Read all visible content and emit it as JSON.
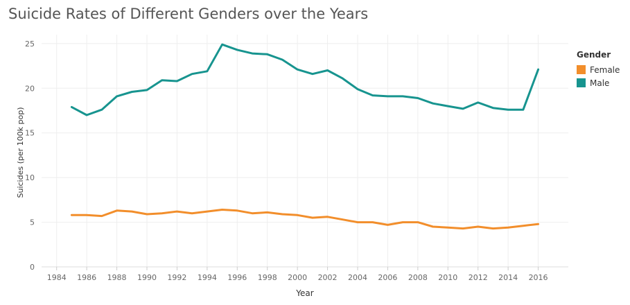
{
  "chart_data": {
    "type": "line",
    "title": "Suicide Rates of Different Genders over the Years",
    "xlabel": "Year",
    "ylabel": "Suicides (per 100k pop)",
    "xlim": [
      1983,
      2018
    ],
    "ylim": [
      0,
      26
    ],
    "x_ticks": [
      1984,
      1986,
      1988,
      1990,
      1992,
      1994,
      1996,
      1998,
      2000,
      2002,
      2004,
      2006,
      2008,
      2010,
      2012,
      2014,
      2016
    ],
    "y_ticks": [
      0,
      5,
      10,
      15,
      20,
      25
    ],
    "grid": true,
    "legend": {
      "title": "Gender",
      "position": "right"
    },
    "x": [
      1985,
      1986,
      1987,
      1988,
      1989,
      1990,
      1991,
      1992,
      1993,
      1994,
      1995,
      1996,
      1997,
      1998,
      1999,
      2000,
      2001,
      2002,
      2003,
      2004,
      2005,
      2006,
      2007,
      2008,
      2009,
      2010,
      2011,
      2012,
      2013,
      2014,
      2015,
      2016
    ],
    "series": [
      {
        "name": "Female",
        "color": "#f28e2b",
        "values": [
          5.8,
          5.8,
          5.7,
          6.3,
          6.2,
          5.9,
          6.0,
          6.2,
          6.0,
          6.2,
          6.4,
          6.3,
          6.0,
          6.1,
          5.9,
          5.8,
          5.5,
          5.6,
          5.3,
          5.0,
          5.0,
          4.7,
          5.0,
          5.0,
          4.5,
          4.4,
          4.3,
          4.5,
          4.3,
          4.4,
          4.6,
          4.8
        ]
      },
      {
        "name": "Male",
        "color": "#17948f",
        "values": [
          17.9,
          17.0,
          17.6,
          19.1,
          19.6,
          19.8,
          20.9,
          20.8,
          21.6,
          21.9,
          24.9,
          24.3,
          23.9,
          23.8,
          23.2,
          22.1,
          21.6,
          22.0,
          21.1,
          19.9,
          19.2,
          19.1,
          19.1,
          18.9,
          18.3,
          18.0,
          17.7,
          18.4,
          17.8,
          17.6,
          17.6,
          22.1
        ]
      }
    ]
  }
}
